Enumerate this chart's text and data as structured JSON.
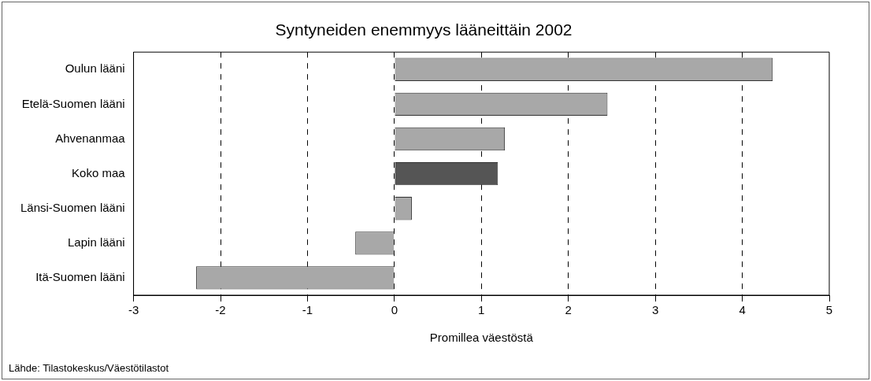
{
  "chart_data": {
    "type": "bar",
    "orientation": "horizontal",
    "title": "Syntyneiden enemmyys lääneittäin 2002",
    "xlabel": "Promillea väestöstä",
    "categories": [
      "Oulun lääni",
      "Etelä-Suomen lääni",
      "Ahvenanmaa",
      "Koko maa",
      "Länsi-Suomen lääni",
      "Lapin lääni",
      "Itä-Suomen lääni"
    ],
    "values": [
      4.35,
      2.45,
      1.27,
      1.19,
      0.2,
      -0.45,
      -2.28
    ],
    "colors": [
      "#a8a8a8",
      "#a8a8a8",
      "#a8a8a8",
      "#555555",
      "#a8a8a8",
      "#a8a8a8",
      "#a8a8a8"
    ],
    "xlim": [
      -3,
      5
    ],
    "xticks": [
      -3,
      -2,
      -1,
      0,
      1,
      2,
      3,
      4,
      5
    ],
    "grid": "x",
    "legend": false,
    "annotations": [
      "Lähde: Tilastokeskus/Väestötilastot"
    ]
  }
}
